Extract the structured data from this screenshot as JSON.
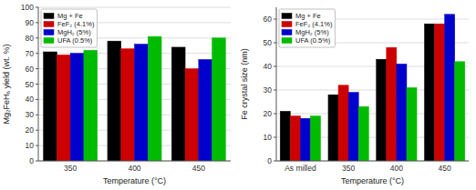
{
  "chart_data": [
    {
      "type": "bar",
      "categories": [
        "350",
        "400",
        "450"
      ],
      "series": [
        {
          "name": "Mg + Fe",
          "color": "#000000",
          "values": [
            71,
            78,
            74
          ]
        },
        {
          "name": "FeF₂ (4.1%)",
          "color": "#cc0000",
          "values": [
            69,
            73,
            60
          ]
        },
        {
          "name": "MgH₂ (5%)",
          "color": "#0000cc",
          "values": [
            70,
            76,
            66
          ]
        },
        {
          "name": "UFA (0.5%)",
          "color": "#00bb00",
          "values": [
            72,
            81,
            80
          ]
        }
      ],
      "xlabel": "Temperature (°C)",
      "ylabel": "Mg₂FeH₆ yield (wt. %)",
      "ylim": [
        0,
        100
      ],
      "yticks": [
        0,
        10,
        20,
        30,
        40,
        50,
        60,
        70,
        80,
        90,
        100
      ],
      "grid": true,
      "legend": "upper left"
    },
    {
      "type": "bar",
      "categories": [
        "As milled",
        "350",
        "400",
        "450"
      ],
      "series": [
        {
          "name": "Mg + Fe",
          "color": "#000000",
          "values": [
            21,
            28,
            43,
            58
          ]
        },
        {
          "name": "FeF₂ (4.1%)",
          "color": "#cc0000",
          "values": [
            19,
            32,
            48,
            58
          ]
        },
        {
          "name": "MgH₂ (5%)",
          "color": "#0000cc",
          "values": [
            18,
            29,
            41,
            62
          ]
        },
        {
          "name": "UFA (0.5%)",
          "color": "#00bb00",
          "values": [
            19,
            23,
            31,
            42
          ]
        }
      ],
      "xlabel": "Temperature (°C)",
      "ylabel": "Fe crystal size (nm)",
      "ylim": [
        0,
        65
      ],
      "yticks": [
        0,
        10,
        20,
        30,
        40,
        50,
        60
      ],
      "grid": true,
      "legend": "upper left"
    }
  ]
}
